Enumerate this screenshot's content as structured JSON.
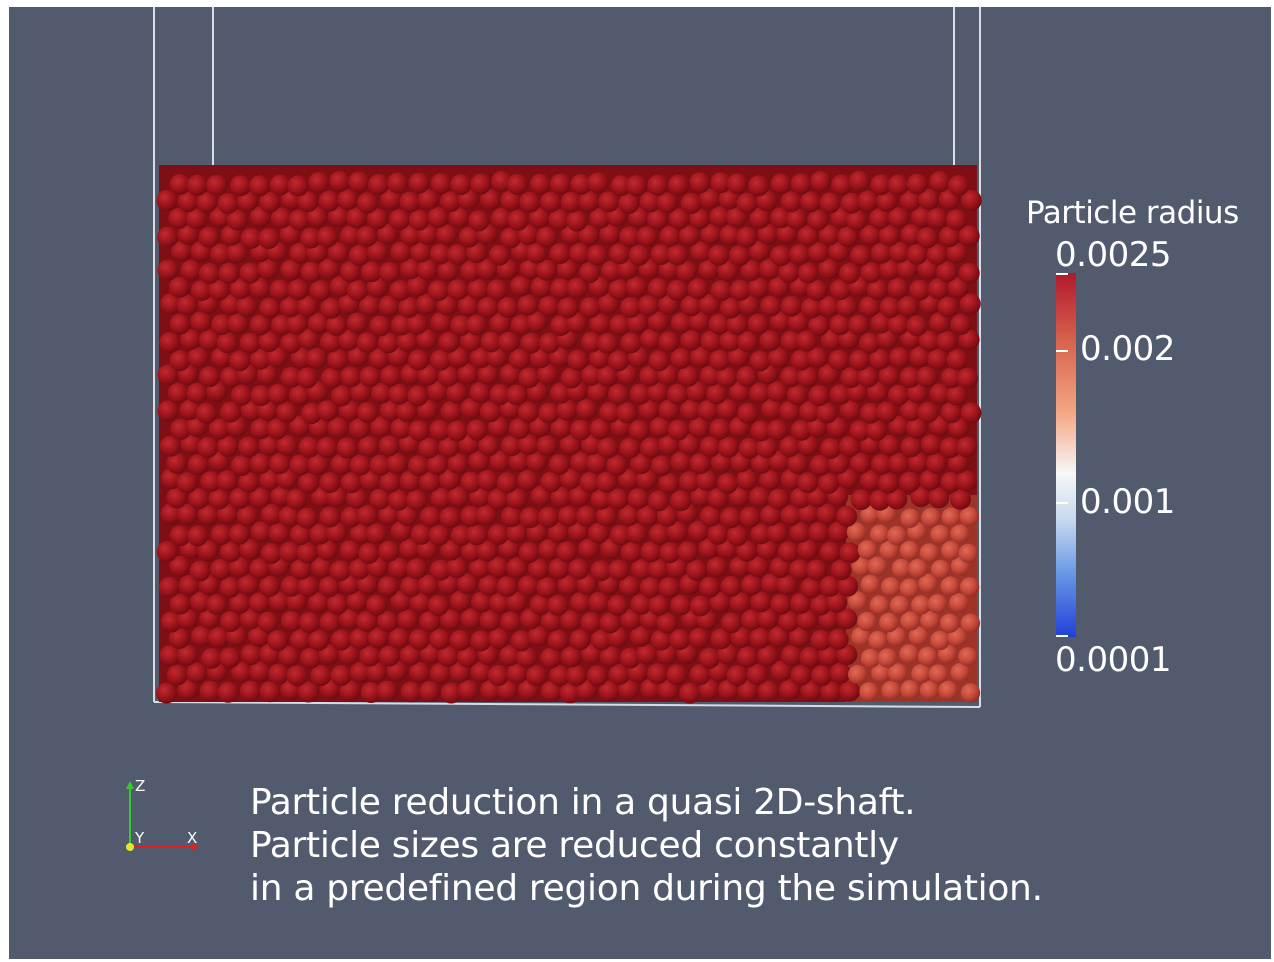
{
  "colorbar": {
    "title": "Particle radius",
    "ticks": [
      {
        "label": "0.0025",
        "value": 0.0025
      },
      {
        "label": "0.002",
        "value": 0.002
      },
      {
        "label": "0.001",
        "value": 0.001
      },
      {
        "label": "0.0001",
        "value": 0.0001
      }
    ],
    "colors": [
      "#b2182b",
      "#d6604d",
      "#f4a582",
      "#f7f7f7",
      "#6b9be6",
      "#2140d8"
    ]
  },
  "caption": {
    "line1": "Particle reduction in a quasi 2D-shaft.",
    "line2": "Particle sizes are reduced constantly",
    "line3": "in a predefined region during the simulation."
  },
  "orientation_axes": {
    "z_label": "Z",
    "y_label": "Y",
    "x_label": "X"
  },
  "colors": {
    "background": "#525a6e",
    "particle": "#a3171f",
    "particle_reduced": "#c64a3a",
    "walls": "#d8dde6"
  }
}
